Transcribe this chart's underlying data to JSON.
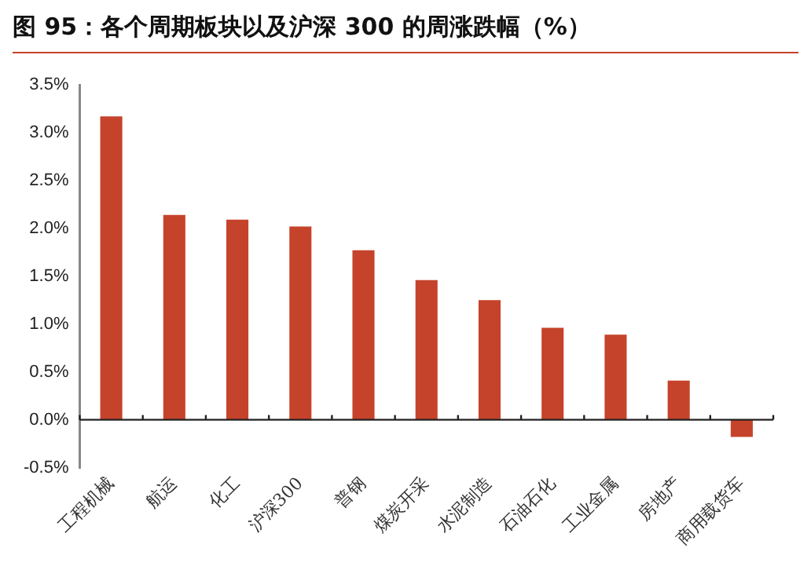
{
  "chart_data": {
    "type": "bar",
    "title": "图 95：各个周期板块以及沪深 300 的周涨跌幅（%）",
    "categories": [
      "工程机械",
      "航运",
      "化工",
      "沪深300",
      "普钢",
      "煤炭开采",
      "水泥制造",
      "石油石化",
      "工业金属",
      "房地产",
      "商用载货车"
    ],
    "values": [
      3.17,
      2.14,
      2.09,
      2.02,
      1.77,
      1.46,
      1.25,
      0.96,
      0.89,
      0.41,
      -0.18
    ],
    "color": "#c5432a",
    "ylim": [
      -0.5,
      3.5
    ],
    "yticks": [
      {
        "value": -0.5,
        "label": "-0.5%"
      },
      {
        "value": 0,
        "label": "0.0%"
      },
      {
        "value": 0.5,
        "label": "0.5%"
      },
      {
        "value": 1,
        "label": "1.0%"
      },
      {
        "value": 1.5,
        "label": "1.5%"
      },
      {
        "value": 2,
        "label": "2.0%"
      },
      {
        "value": 2.5,
        "label": "2.5%"
      },
      {
        "value": 3,
        "label": "3.0%"
      },
      {
        "value": 3.5,
        "label": "3.5%"
      }
    ],
    "legend": false
  }
}
